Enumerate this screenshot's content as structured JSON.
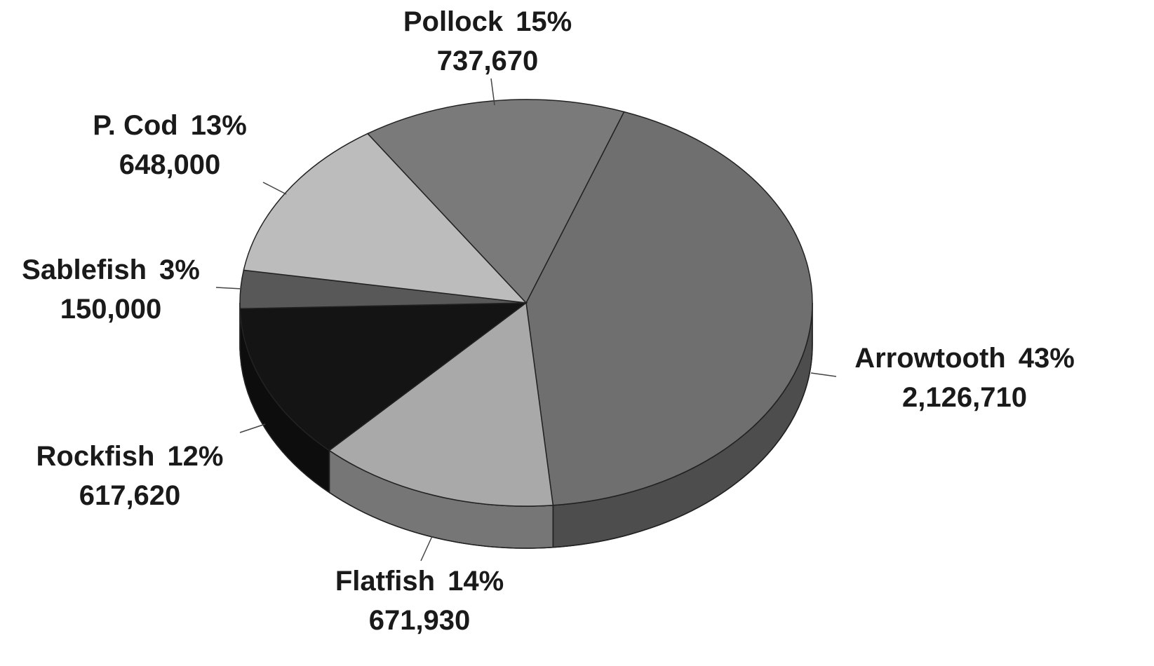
{
  "chart_data": {
    "type": "pie",
    "categories": [
      "Arrowtooth",
      "Flatfish",
      "Rockfish",
      "Sablefish",
      "P. Cod",
      "Pollock"
    ],
    "values": [
      2126710,
      671930,
      617620,
      150000,
      648000,
      737670
    ],
    "value_labels": [
      "2,126,710",
      "671,930",
      "617,620",
      "150,000",
      "648,000",
      "737,670"
    ],
    "percents": [
      43,
      14,
      12,
      3,
      13,
      15
    ],
    "percent_labels": [
      "43%",
      "14%",
      "12%",
      "3%",
      "13%",
      "15%"
    ],
    "colors": [
      "#6f6f6f",
      "#a9a9a9",
      "#141414",
      "#585858",
      "#bcbcbc",
      "#7a7a7a"
    ]
  }
}
